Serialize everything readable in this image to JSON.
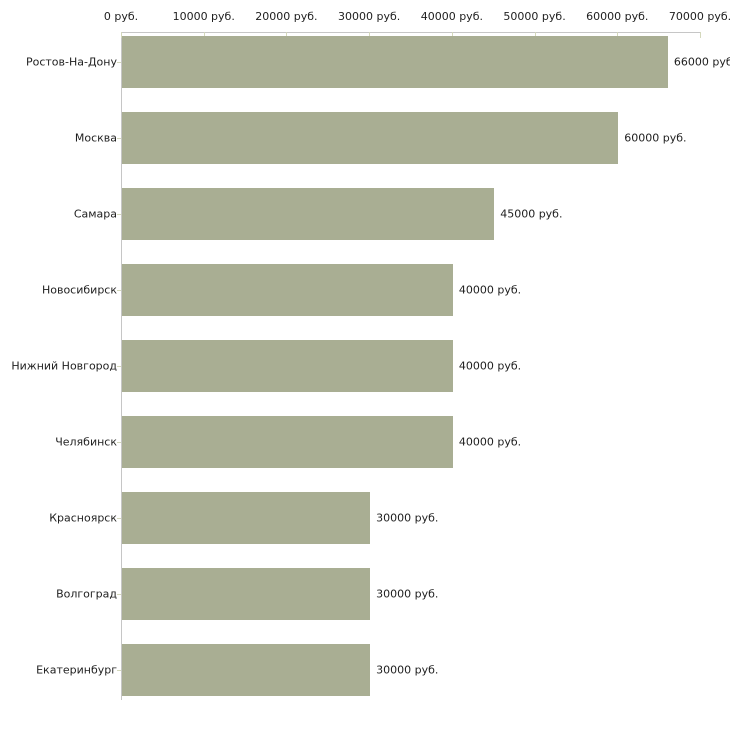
{
  "chart_data": {
    "type": "bar",
    "orientation": "horizontal",
    "title": "",
    "xlabel": "",
    "ylabel": "",
    "categories": [
      "Ростов-На-Дону",
      "Москва",
      "Самара",
      "Новосибирск",
      "Нижний Новгород",
      "Челябинск",
      "Красноярск",
      "Волгоград",
      "Екатеринбург"
    ],
    "values": [
      66000,
      60000,
      45000,
      40000,
      40000,
      40000,
      30000,
      30000,
      30000
    ],
    "value_labels": [
      "66000 руб",
      "60000 руб.",
      "45000 руб.",
      "40000 руб.",
      "40000 руб.",
      "40000 руб.",
      "30000 руб.",
      "30000 руб.",
      "30000 руб."
    ],
    "x_ticks": [
      0,
      10000,
      20000,
      30000,
      40000,
      50000,
      60000,
      70000
    ],
    "x_tick_labels": [
      "0 руб.",
      "10000 руб.",
      "20000 руб.",
      "30000 руб.",
      "40000 руб.",
      "50000 руб.",
      "60000 руб.",
      "70000 руб."
    ],
    "xlim": [
      0,
      70000
    ],
    "grid": false,
    "legend": null,
    "axis_position": "top",
    "colors": {
      "bar": "#a9ae93",
      "axis": "#c6c6c6",
      "tick": "#d4d8bc",
      "text": "#1f1f1f",
      "background": "#ffffff"
    }
  }
}
